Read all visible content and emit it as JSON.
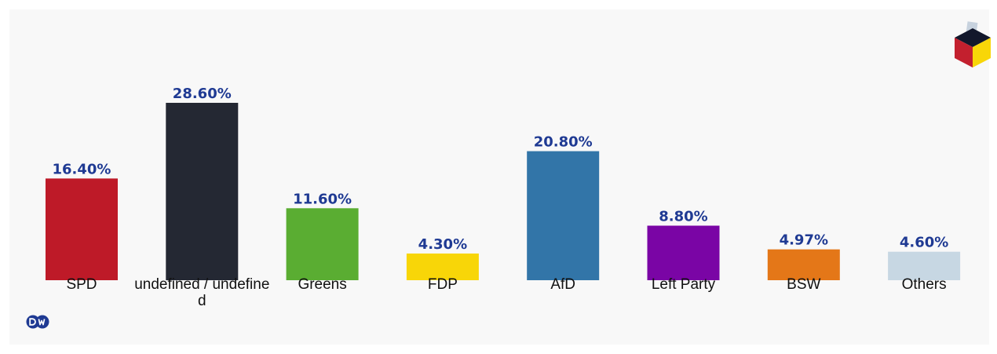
{
  "chart_data": {
    "type": "bar",
    "categories": [
      "SPD",
      "undefined / undefined",
      "Greens",
      "FDP",
      "AfD",
      "Left Party",
      "BSW",
      "Others"
    ],
    "values": [
      16.4,
      28.6,
      11.6,
      4.3,
      20.8,
      8.8,
      4.97,
      4.6
    ],
    "value_labels": [
      "16.40%",
      "28.60%",
      "11.60%",
      "4.30%",
      "20.80%",
      "8.80%",
      "4.97%",
      "4.60%"
    ],
    "colors": [
      "#be1a28",
      "#242833",
      "#5aad32",
      "#f8d608",
      "#3275a8",
      "#7a05a5",
      "#e47718",
      "#c7d7e3"
    ],
    "value_label_color": "#1f3a93",
    "ylim": [
      0,
      28.6
    ],
    "title": "",
    "xlabel": "",
    "ylabel": "",
    "grid": false,
    "legend": "none"
  },
  "branding": {
    "source_logo": "dw-logo-icon",
    "corner_logo": "ballot-box-icon"
  }
}
